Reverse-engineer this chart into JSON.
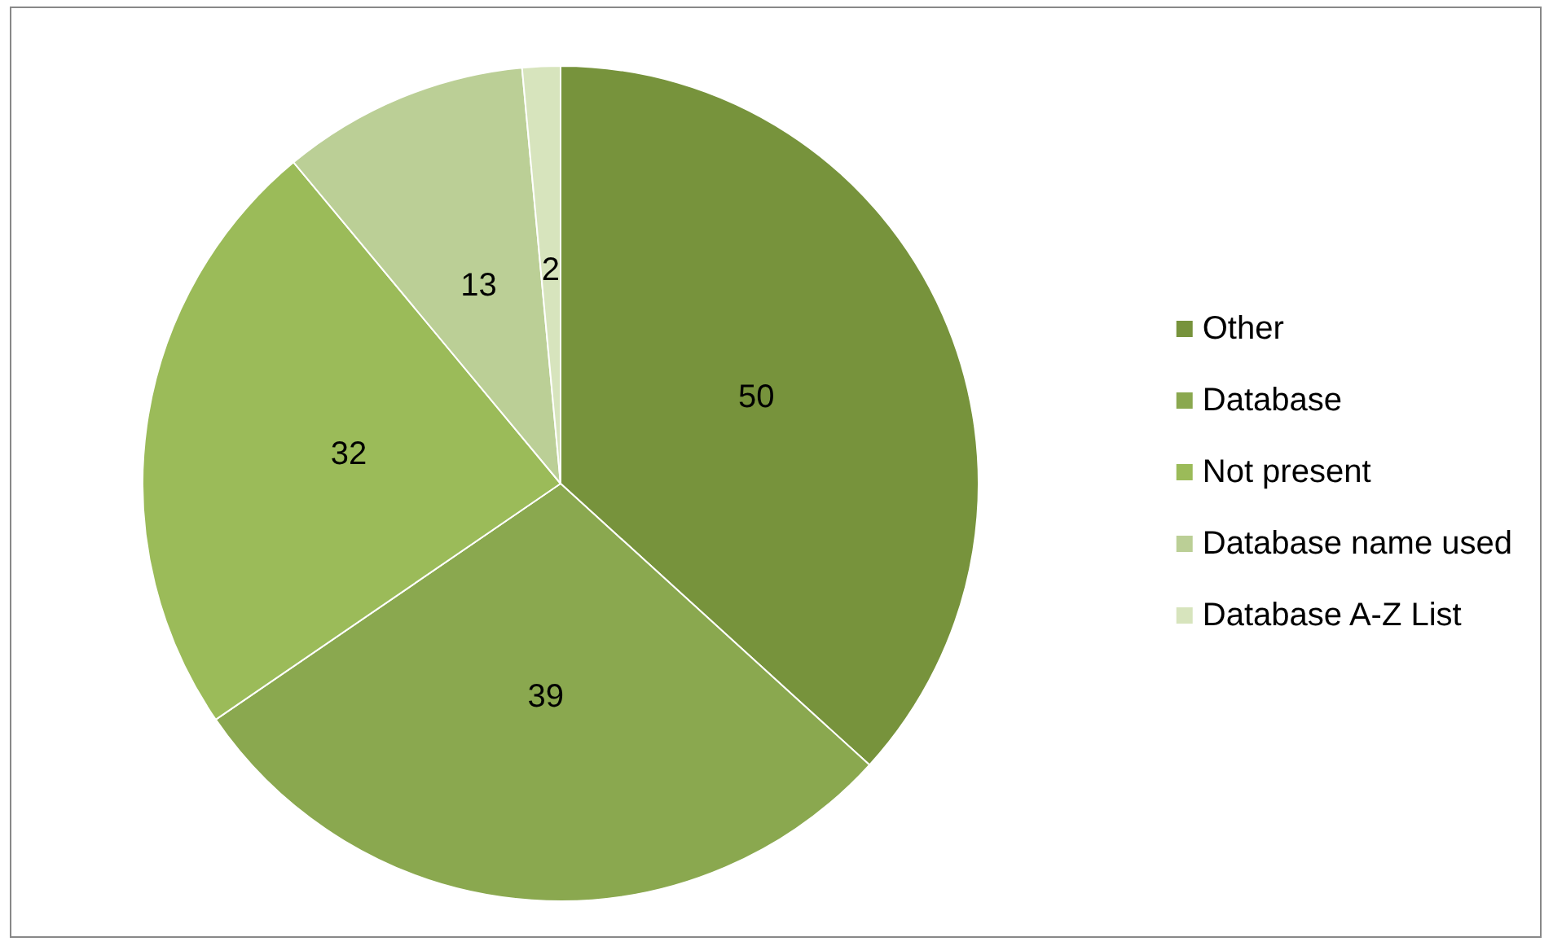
{
  "chart_data": {
    "type": "pie",
    "categories": [
      "Other",
      "Database",
      "Not present",
      "Database name used",
      "Database A-Z List"
    ],
    "values": [
      50,
      39,
      32,
      13,
      2
    ],
    "colors": [
      "#77933c",
      "#8aa84f",
      "#9bbb59",
      "#bbcf96",
      "#d7e4bd"
    ],
    "data_labels": true,
    "legend": "right"
  }
}
